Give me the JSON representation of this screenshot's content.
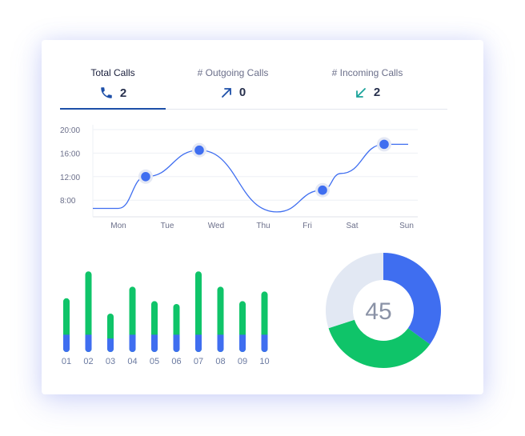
{
  "tabs": [
    {
      "label": "Total Calls",
      "value": "2",
      "icon": "phone-icon"
    },
    {
      "label": "# Outgoing Calls",
      "value": "0",
      "icon": "arrow-up-right-icon"
    },
    {
      "label": "# Incoming Calls",
      "value": "2",
      "icon": "arrow-down-left-icon"
    }
  ],
  "colors": {
    "accent": "#3f6ef0",
    "green": "#0fc469",
    "donut_gray": "#e2e8f3",
    "tab_active": "#1d4fa8",
    "incoming": "#1aa39a"
  },
  "chart_data": [
    {
      "type": "line",
      "x": [
        "Mon",
        "Tue",
        "Wed",
        "Thu",
        "Fri",
        "Sat",
        "Sun"
      ],
      "y_ticks": [
        "20:00",
        "16:00",
        "12:00",
        "8:00"
      ],
      "ylim": [
        6,
        21
      ],
      "grid": true,
      "series": [
        {
          "points": [
            {
              "x": "Mon",
              "y": 6.6
            },
            {
              "x": "Tue",
              "y": 12.0,
              "marker": true
            },
            {
              "x": "Wed",
              "y": 16.5,
              "marker": true
            },
            {
              "x": "Thu",
              "y": 6.0
            },
            {
              "x": "Fri",
              "y": 9.7,
              "marker": true
            },
            {
              "x": "Sat",
              "y": 12.0
            },
            {
              "x": "Sun",
              "y": 17.5,
              "marker": true
            }
          ]
        }
      ]
    },
    {
      "type": "bar",
      "stacked": true,
      "categories": [
        "01",
        "02",
        "03",
        "04",
        "05",
        "06",
        "07",
        "08",
        "09",
        "10"
      ],
      "series": [
        {
          "color": "#3f6ef0",
          "values": [
            1.8,
            1.8,
            1.4,
            1.8,
            1.8,
            1.8,
            1.8,
            1.8,
            1.8,
            1.8
          ]
        },
        {
          "color": "#0fc469",
          "values": [
            3.8,
            6.6,
            2.6,
            5.0,
            3.5,
            3.2,
            6.6,
            5.0,
            3.5,
            4.5
          ]
        }
      ]
    },
    {
      "type": "pie",
      "center_label": "45",
      "slices": [
        {
          "color": "#3f6ef0",
          "value": 35
        },
        {
          "color": "#0fc469",
          "value": 35
        },
        {
          "color": "#e2e8f3",
          "value": 30
        }
      ]
    }
  ]
}
